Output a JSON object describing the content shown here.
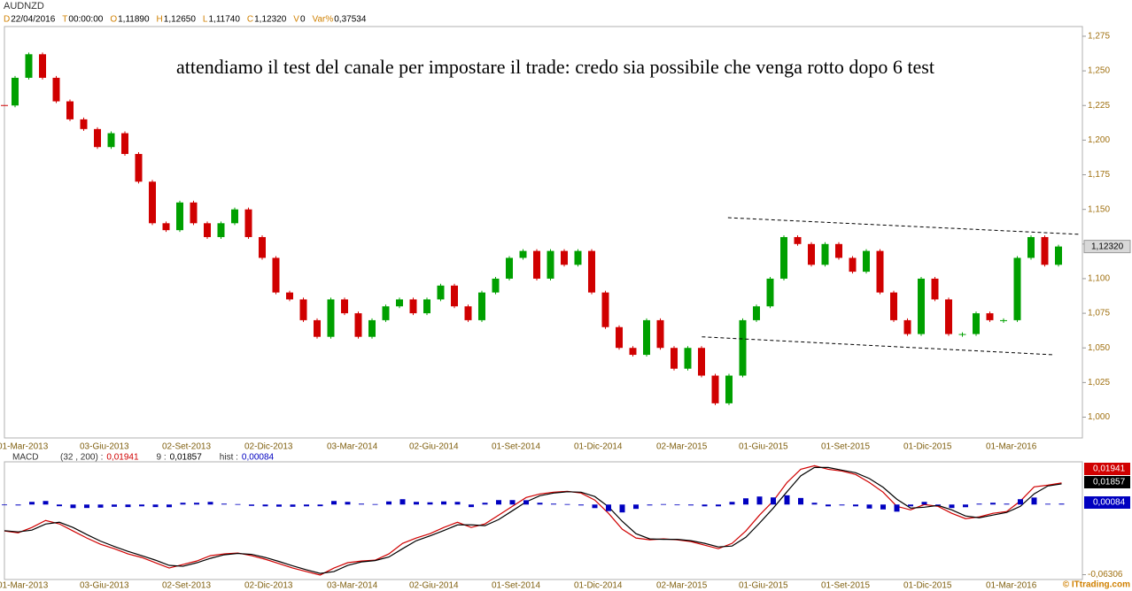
{
  "header": {
    "symbol": "AUDNZD",
    "fields": [
      {
        "key": "D",
        "value": "22/04/2016"
      },
      {
        "key": "T",
        "value": "00:00:00"
      },
      {
        "key": "O",
        "value": "1,11890"
      },
      {
        "key": "H",
        "value": "1,12650"
      },
      {
        "key": "L",
        "value": "1,11740"
      },
      {
        "key": "C",
        "value": "1,12320"
      },
      {
        "key": "V",
        "value": "0"
      },
      {
        "key": "Var%",
        "value": "0,37534"
      }
    ]
  },
  "watermark": "© ITtrading.com",
  "chart_data": [
    {
      "type": "candlestick",
      "annotation": "attendiamo il test del canale per impostare il trade: credo sia possibile che venga rotto dopo 6 test",
      "categories": [
        "01-Mar-2013",
        null,
        null,
        null,
        null,
        null,
        "03-Giu-2013",
        null,
        null,
        null,
        null,
        null,
        "02-Set-2013",
        null,
        null,
        null,
        null,
        null,
        "02-Dic-2013",
        null,
        null,
        null,
        null,
        null,
        "03-Mar-2014",
        null,
        null,
        null,
        null,
        null,
        "02-Giu-2014",
        null,
        null,
        null,
        null,
        null,
        "01-Set-2014",
        null,
        null,
        null,
        null,
        null,
        "01-Dic-2014",
        null,
        null,
        null,
        null,
        null,
        "02-Mar-2015",
        null,
        null,
        null,
        null,
        null,
        "01-Giu-2015",
        null,
        null,
        null,
        null,
        null,
        "01-Set-2015",
        null,
        null,
        null,
        null,
        null,
        "01-Dic-2015",
        null,
        null,
        null,
        null,
        null,
        "01-Mar-2016",
        null,
        null,
        null,
        null,
        null
      ],
      "values": [
        1.225,
        1.245,
        1.262,
        1.245,
        1.228,
        1.215,
        1.208,
        1.195,
        1.205,
        1.19,
        1.17,
        1.14,
        1.135,
        1.155,
        1.14,
        1.13,
        1.14,
        1.15,
        1.13,
        1.115,
        1.09,
        1.085,
        1.07,
        1.058,
        1.085,
        1.075,
        1.058,
        1.07,
        1.08,
        1.085,
        1.075,
        1.085,
        1.095,
        1.08,
        1.07,
        1.09,
        1.1,
        1.115,
        1.12,
        1.1,
        1.12,
        1.11,
        1.12,
        1.09,
        1.065,
        1.05,
        1.045,
        1.07,
        1.05,
        1.035,
        1.05,
        1.03,
        1.01,
        1.03,
        1.07,
        1.08,
        1.1,
        1.13,
        1.125,
        1.11,
        1.125,
        1.115,
        1.105,
        1.12,
        1.09,
        1.07,
        1.06,
        1.1,
        1.085,
        1.06,
        1.06,
        1.075,
        1.07,
        1.07,
        1.115,
        1.13,
        1.11,
        1.1232
      ],
      "up_color": "#00a000",
      "down_color": "#d00000",
      "last_marker": {
        "value": 1.1232,
        "label": "1,12320"
      },
      "trendlines": [
        {
          "x": [
            52.7,
            78.3
          ],
          "y": [
            1.144,
            1.132
          ]
        },
        {
          "x": [
            50.8,
            76.5
          ],
          "y": [
            1.058,
            1.045
          ]
        }
      ],
      "ylim": [
        0.985,
        1.282
      ],
      "yticks": [
        {
          "value": 1.0,
          "label": "1,000"
        },
        {
          "value": 1.025,
          "label": "1,025"
        },
        {
          "value": 1.05,
          "label": "1,050"
        },
        {
          "value": 1.075,
          "label": "1,075"
        },
        {
          "value": 1.1,
          "label": "1,100"
        },
        {
          "value": 1.125,
          "label": "1,125"
        },
        {
          "value": 1.15,
          "label": "1,150"
        },
        {
          "value": 1.175,
          "label": "1,175"
        },
        {
          "value": 1.2,
          "label": "1,200"
        },
        {
          "value": 1.225,
          "label": "1,225"
        },
        {
          "value": 1.25,
          "label": "1,250"
        },
        {
          "value": 1.275,
          "label": "1,275"
        }
      ]
    },
    {
      "type": "macd",
      "title": "MACD",
      "ylim": [
        -0.0674,
        0.0384
      ],
      "yticks": [
        {
          "value": -0.06306,
          "label": "-0,06306"
        }
      ],
      "series": [
        {
          "name": "(32 , 200) :",
          "color": "#d00000",
          "kind": "line",
          "last_label": "0,01941",
          "values": [
            -0.0238,
            -0.0254,
            -0.0206,
            -0.0143,
            -0.0174,
            -0.0238,
            -0.0301,
            -0.0357,
            -0.0397,
            -0.0444,
            -0.0476,
            -0.0523,
            -0.0571,
            -0.0539,
            -0.0508,
            -0.046,
            -0.0444,
            -0.0436,
            -0.046,
            -0.0492,
            -0.0531,
            -0.0571,
            -0.0603,
            -0.0634,
            -0.0571,
            -0.0523,
            -0.0508,
            -0.05,
            -0.0444,
            -0.0349,
            -0.0301,
            -0.0262,
            -0.0206,
            -0.0159,
            -0.0206,
            -0.0174,
            -0.0095,
            -0.0016,
            0.0063,
            0.0095,
            0.0111,
            0.0119,
            0.0103,
            0.004,
            -0.0079,
            -0.0222,
            -0.0301,
            -0.0317,
            -0.0309,
            -0.0317,
            -0.0333,
            -0.0365,
            -0.0397,
            -0.0349,
            -0.0238,
            -0.0095,
            0.0032,
            0.0198,
            0.0317,
            0.0349,
            0.0317,
            0.0301,
            0.027,
            0.0198,
            0.0111,
            -0.0016,
            -0.0048,
            0,
            -0.0016,
            -0.0079,
            -0.0127,
            -0.0111,
            -0.0079,
            -0.0063,
            0.0032,
            0.0159,
            0.0174,
            0.01941
          ]
        },
        {
          "name": "9 :",
          "color": "#000000",
          "kind": "line",
          "last_label": "0,01857",
          "values": [
            -0.0235,
            -0.0246,
            -0.023,
            -0.0175,
            -0.0159,
            -0.0206,
            -0.027,
            -0.0329,
            -0.0377,
            -0.0421,
            -0.046,
            -0.05,
            -0.0547,
            -0.0555,
            -0.0524,
            -0.0484,
            -0.0452,
            -0.044,
            -0.0448,
            -0.0476,
            -0.0512,
            -0.0551,
            -0.0587,
            -0.0619,
            -0.0603,
            -0.0547,
            -0.0516,
            -0.0504,
            -0.0472,
            -0.0397,
            -0.0325,
            -0.0282,
            -0.0234,
            -0.0183,
            -0.0183,
            -0.019,
            -0.0135,
            -0.0056,
            0.0024,
            0.0079,
            0.0103,
            0.0115,
            0.0111,
            0.0072,
            -0.002,
            -0.0151,
            -0.0262,
            -0.0309,
            -0.0313,
            -0.0313,
            -0.0325,
            -0.0349,
            -0.0381,
            -0.0373,
            -0.0294,
            -0.0167,
            -0.0032,
            0.0115,
            0.0258,
            0.0333,
            0.0333,
            0.0309,
            0.0286,
            0.0234,
            0.0155,
            0.0048,
            -0.0032,
            -0.0024,
            -0.0008,
            -0.0048,
            -0.0103,
            -0.0119,
            -0.0095,
            -0.0071,
            -0.0016,
            0.0096,
            0.0167,
            0.01857
          ]
        },
        {
          "name": "hist :",
          "color": "#0000c0",
          "kind": "bar",
          "last_label": "0,00084",
          "values": [
            -0.0003,
            -0.0008,
            0.0024,
            0.0032,
            -0.0015,
            -0.0032,
            -0.0031,
            -0.0028,
            -0.002,
            -0.0023,
            -0.0016,
            -0.0023,
            -0.0024,
            0.0016,
            0.0016,
            0.0024,
            0.0008,
            0.0004,
            -0.0012,
            -0.0016,
            -0.0019,
            -0.002,
            -0.0016,
            -0.0015,
            0.0032,
            0.0024,
            0.0008,
            0.0004,
            0.0028,
            0.0048,
            0.0024,
            0.002,
            0.0028,
            0.0024,
            -0.0023,
            0.0016,
            0.004,
            0.004,
            0.0039,
            0.0016,
            0.0008,
            0.0004,
            -0.0008,
            -0.0032,
            -0.0059,
            -0.0071,
            -0.0039,
            -0.0008,
            0.0004,
            -0.0004,
            -0.0008,
            -0.0016,
            -0.0016,
            0.0024,
            0.0056,
            0.0072,
            0.0064,
            0.0083,
            0.0059,
            0.0016,
            -0.0016,
            -0.0008,
            -0.0016,
            -0.0036,
            -0.0044,
            -0.0064,
            -0.0016,
            0.0024,
            -0.0008,
            -0.0031,
            -0.0024,
            0.0008,
            0.0016,
            0.0008,
            0.0048,
            0.0063,
            0.0007,
            0.00084
          ]
        }
      ]
    }
  ]
}
